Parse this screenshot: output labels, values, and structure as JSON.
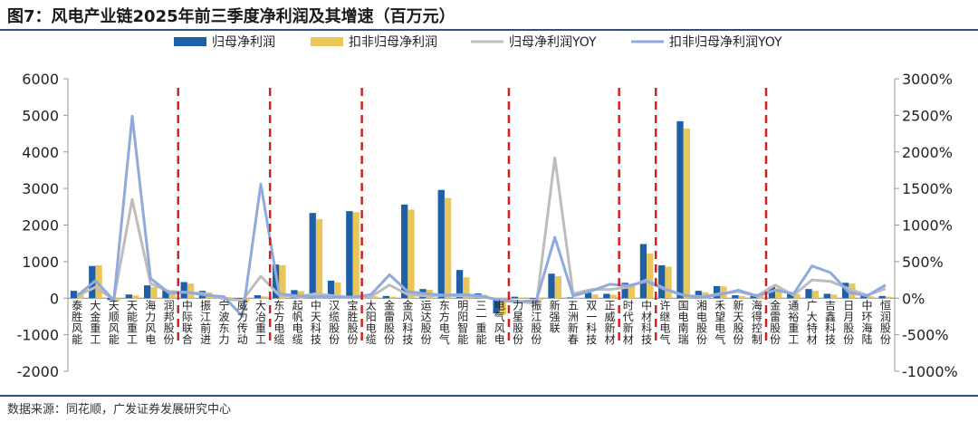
{
  "title": "图7：风电产业链2025年前三季度净利润及其增速（百万元）",
  "source": "数据来源：同花顺，广发证券发展研究中心",
  "colors": {
    "bar1": "#1f5fa6",
    "bar2": "#e8c65a",
    "line1": "#bdbdbd",
    "line2": "#8faadc",
    "divider": "#d62020",
    "rule": "#2f4f7f"
  },
  "chart_data": {
    "type": "bar",
    "title": "图7：风电产业链2025年前三季度净利润及其增速（百万元）",
    "xlabel": "",
    "ylabel": "",
    "ylim": [
      -2000,
      6000
    ],
    "yticks": [
      -2000,
      -1000,
      0,
      1000,
      2000,
      3000,
      4000,
      5000,
      6000
    ],
    "y2lim": [
      -1000,
      3000
    ],
    "y2ticks": [
      "-1000%",
      "-500%",
      "0%",
      "500%",
      "1000%",
      "1500%",
      "2000%",
      "2500%",
      "3000%"
    ],
    "legend_position": "top",
    "grid": false,
    "categories": [
      "泰胜风能",
      "大金重工",
      "天顺风能",
      "天能重工",
      "海力风电",
      "润邦股份",
      "中际联合",
      "振江前进",
      "宁波东力",
      "威力传动",
      "大冶重工",
      "东方电缆",
      "起帆电缆",
      "中天科技",
      "汉缆股份",
      "宝胜股份",
      "太阳电缆",
      "金雷股份",
      "金风科技",
      "运达股份",
      "东方电气",
      "明阳智能",
      "三一重能",
      "电气风电",
      "力星股份",
      "振江股份",
      "新强联",
      "五洲新春",
      "双一科技",
      "正威新材",
      "时代新材",
      "中材科技",
      "许继电气",
      "国电南瑞",
      "湘电股份",
      "禾望电气",
      "新天股份",
      "海得控制",
      "金雷股份",
      "通裕重工",
      "广大特材",
      "吉鑫科技",
      "日月股份",
      "中环海陆",
      "恒润股份"
    ],
    "dividers_after": [
      5,
      10,
      15,
      23,
      29,
      31,
      37
    ],
    "series": [
      {
        "name": "归母净利润",
        "type": "bar",
        "axis": "left",
        "values": [
          200,
          880,
          -50,
          100,
          350,
          230,
          440,
          200,
          50,
          -80,
          80,
          920,
          220,
          2330,
          480,
          2380,
          70,
          60,
          2560,
          250,
          2960,
          770,
          130,
          -420,
          40,
          -20,
          670,
          20,
          150,
          120,
          420,
          1480,
          900,
          4840,
          200,
          330,
          80,
          110,
          310,
          140,
          250,
          120,
          420,
          80,
          60
        ]
      },
      {
        "name": "扣非归母净利润",
        "type": "bar",
        "axis": "left",
        "values": [
          160,
          900,
          -60,
          70,
          300,
          220,
          400,
          160,
          30,
          -100,
          50,
          900,
          190,
          2160,
          430,
          2350,
          50,
          40,
          2420,
          230,
          2740,
          570,
          90,
          -450,
          20,
          -40,
          600,
          -10,
          100,
          90,
          380,
          1220,
          860,
          4640,
          160,
          320,
          60,
          100,
          270,
          110,
          200,
          100,
          400,
          50,
          40
        ]
      },
      {
        "name": "归母净利润YOY",
        "type": "line",
        "axis": "right",
        "values": [
          30,
          150,
          -20,
          1350,
          200,
          90,
          80,
          60,
          -10,
          -30,
          300,
          40,
          20,
          60,
          30,
          10,
          20,
          180,
          50,
          30,
          40,
          30,
          20,
          -20,
          -40,
          -80,
          1920,
          60,
          120,
          120,
          150,
          250,
          130,
          40,
          20,
          60,
          90,
          30,
          180,
          40,
          250,
          230,
          130,
          40,
          130
        ]
      },
      {
        "name": "扣非归母净利润YOY",
        "type": "line",
        "axis": "right",
        "values": [
          30,
          240,
          -30,
          2490,
          270,
          70,
          80,
          40,
          20,
          -250,
          1560,
          60,
          30,
          20,
          20,
          10,
          50,
          320,
          90,
          60,
          40,
          50,
          30,
          -30,
          -50,
          -30,
          830,
          30,
          100,
          190,
          170,
          230,
          120,
          40,
          10,
          50,
          110,
          30,
          110,
          60,
          440,
          350,
          80,
          30,
          180
        ]
      }
    ]
  }
}
